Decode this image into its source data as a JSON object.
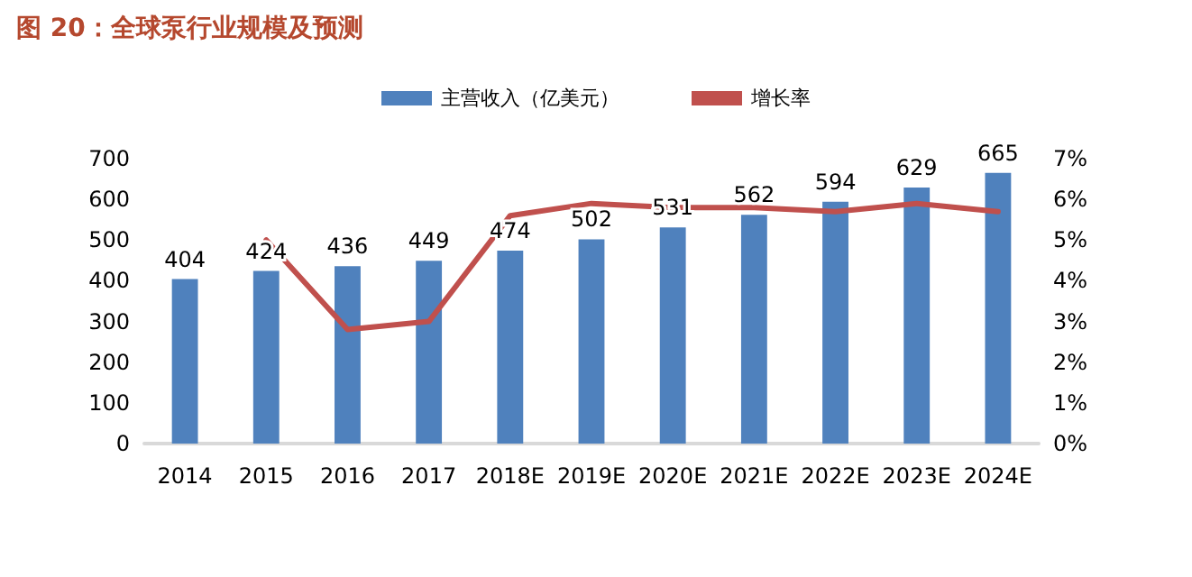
{
  "chart_data": {
    "type": "bar",
    "title": "图 20：全球泵行业规模及预测",
    "categories": [
      "2014",
      "2015",
      "2016",
      "2017",
      "2018E",
      "2019E",
      "2020E",
      "2021E",
      "2022E",
      "2023E",
      "2024E"
    ],
    "series": [
      {
        "name": "主营收入（亿美元）",
        "color": "#4f81bd",
        "values": [
          404,
          424,
          436,
          449,
          474,
          502,
          531,
          562,
          594,
          629,
          665
        ]
      },
      {
        "name": "增长率",
        "type": "line",
        "axis": "y2",
        "color": "#c0504d",
        "values": [
          null,
          5.0,
          2.8,
          3.0,
          5.6,
          5.9,
          5.8,
          5.8,
          5.7,
          5.9,
          5.7
        ]
      }
    ],
    "ylim": [
      0,
      700
    ],
    "yticks": [
      0,
      100,
      200,
      300,
      400,
      500,
      600,
      700
    ],
    "y2lim": [
      0,
      7
    ],
    "y2ticks": [
      {
        "value": 0,
        "label": "0%"
      },
      {
        "value": 1,
        "label": "1%"
      },
      {
        "value": 2,
        "label": "2%"
      },
      {
        "value": 3,
        "label": "3%"
      },
      {
        "value": 4,
        "label": "4%"
      },
      {
        "value": 5,
        "label": "5%"
      },
      {
        "value": 6,
        "label": "6%"
      },
      {
        "value": 7,
        "label": "7%"
      }
    ],
    "value_labels": [
      "404",
      "424",
      "436",
      "449",
      "474",
      "502",
      "531",
      "562",
      "594",
      "629",
      "665"
    ],
    "legend": "top",
    "grid": false,
    "marker": "none",
    "line_style": "solid"
  }
}
